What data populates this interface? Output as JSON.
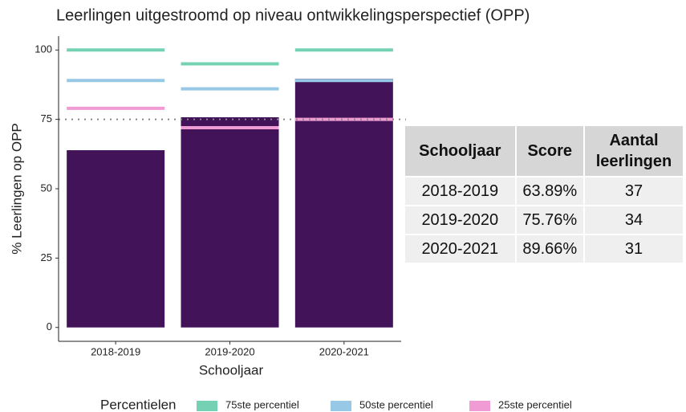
{
  "chart_data": {
    "type": "bar",
    "title": "Leerlingen uitgestroomd op niveau ontwikkelingsperspectief (OPP)",
    "xlabel": "Schooljaar",
    "ylabel": "% Leerlingen op OPP",
    "categories": [
      "2018-2019",
      "2019-2020",
      "2020-2021"
    ],
    "values": [
      63.89,
      75.76,
      89.66
    ],
    "color": "#43135a",
    "series": [
      {
        "name": "75ste percentiel",
        "color": "#74d1b3",
        "values": [
          100,
          95,
          100
        ]
      },
      {
        "name": "50ste percentiel",
        "color": "#97c9e6",
        "values": [
          89,
          86,
          89
        ]
      },
      {
        "name": "25ste percentiel",
        "color": "#f09bd3",
        "values": [
          79,
          72,
          75
        ]
      }
    ],
    "legend_title": "Percentielen",
    "legend": "bottom",
    "reference_line": 75,
    "ylim": [
      -5,
      105
    ],
    "yticks": [
      0,
      25,
      50,
      75,
      100
    ],
    "grid": false
  },
  "table": {
    "headers": [
      "Schooljaar",
      "Score",
      "Aantal leerlingen"
    ],
    "rows": [
      [
        "2018-2019",
        "63.89%",
        "37"
      ],
      [
        "2019-2020",
        "75.76%",
        "34"
      ],
      [
        "2020-2021",
        "89.66%",
        "31"
      ]
    ]
  }
}
